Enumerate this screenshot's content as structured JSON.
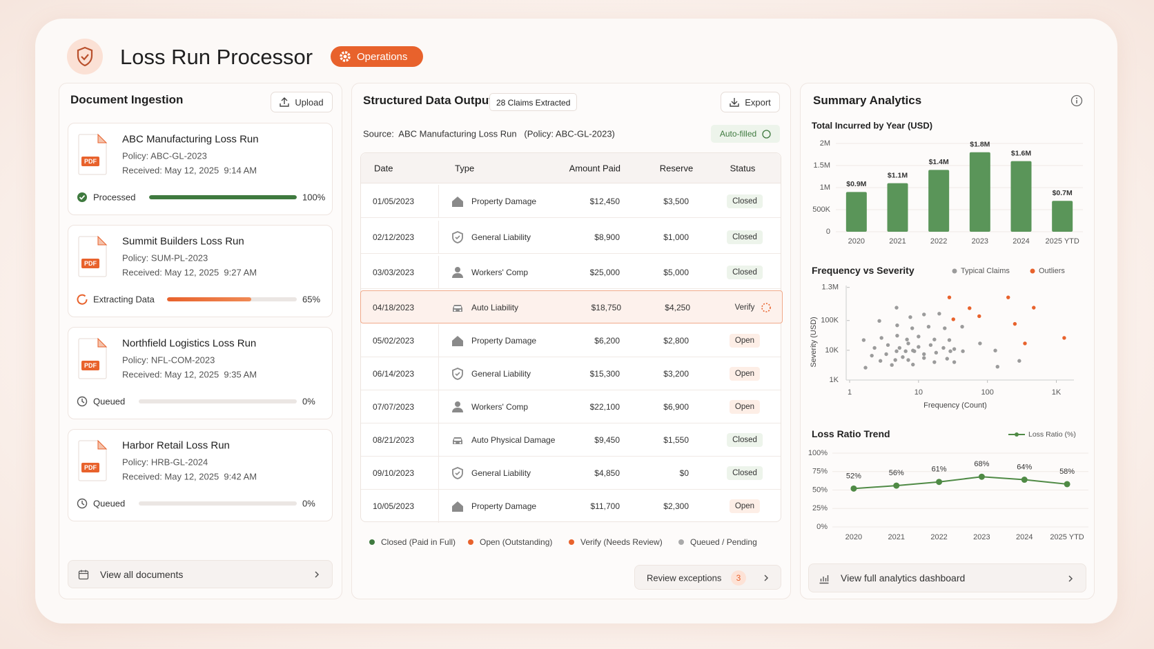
{
  "header": {
    "title": "Loss Run Processor",
    "badge": "Operations"
  },
  "ingestion": {
    "title": "Document Ingestion",
    "upload": "Upload",
    "documents": [
      {
        "file_type": "PDF",
        "name": "ABC Manufacturing Loss Run",
        "policy": "Policy: ABC-GL-2023",
        "received": "Received: May 12, 2025  9:14 AM",
        "status": "Processed",
        "progress": 100,
        "progress_label": "100%"
      },
      {
        "file_type": "PDF",
        "name": "Summit Builders Loss Run",
        "policy": "Policy: SUM-PL-2023",
        "received": "Received: May 12, 2025  9:27 AM",
        "status": "Extracting Data",
        "progress": 65,
        "progress_label": "65%"
      },
      {
        "file_type": "PDF",
        "name": "Northfield Logistics Loss Run",
        "policy": "Policy: NFL-COM-2023",
        "received": "Received: May 12, 2025  9:35 AM",
        "status": "Queued",
        "progress": 0,
        "progress_label": "0%"
      },
      {
        "file_type": "PDF",
        "name": "Harbor Retail Loss Run",
        "policy": "Policy: HRB-GL-2024",
        "received": "Received: May 12, 2025  9:42 AM",
        "status": "Queued",
        "progress": 0,
        "progress_label": "0%"
      }
    ],
    "footer": "View all documents"
  },
  "output": {
    "title": "Structured Data Output",
    "badge": "28 Claims Extracted",
    "export": "Export",
    "source": "Source:  ABC Manufacturing Loss Run   (Policy: ABC-GL-2023)",
    "autofill": "Auto-filled",
    "table": {
      "columns": [
        "Date",
        "Type",
        "Amount Paid",
        "Reserve",
        "Status"
      ],
      "rows": [
        [
          "01/05/2023",
          "Property Damage",
          "$12,450",
          "$3,500",
          "Closed"
        ],
        [
          "02/12/2023",
          "General Liability",
          "$8,900",
          "$1,000",
          "Closed"
        ],
        [
          "03/03/2023",
          "Workers' Comp",
          "$25,000",
          "$5,000",
          "Closed"
        ],
        [
          "04/18/2023",
          "Auto Liability",
          "$18,750",
          "$4,250",
          "Verify"
        ],
        [
          "05/02/2023",
          "Property Damage",
          "$6,200",
          "$2,800",
          "Open"
        ],
        [
          "06/14/2023",
          "General Liability",
          "$15,300",
          "$3,200",
          "Open"
        ],
        [
          "07/07/2023",
          "Workers' Comp",
          "$22,100",
          "$6,900",
          "Open"
        ],
        [
          "08/21/2023",
          "Auto Physical Damage",
          "$9,450",
          "$1,550",
          "Closed"
        ],
        [
          "09/10/2023",
          "General Liability",
          "$4,850",
          "$0",
          "Closed"
        ],
        [
          "10/05/2023",
          "Property Damage",
          "$11,700",
          "$2,300",
          "Open"
        ]
      ]
    },
    "legend": [
      "Closed (Paid in Full)",
      "Open (Outstanding)",
      "Verify (Needs Review)",
      "Queued / Pending"
    ],
    "review": "Review exceptions",
    "review_count": 3
  },
  "analytics": {
    "title": "Summary Analytics",
    "footer": "View full analytics dashboard",
    "charts": [
      {
        "type": "bar",
        "title": "Total Incurred by Year (USD)",
        "categories": [
          "2020",
          "2021",
          "2022",
          "2023",
          "2024",
          "2025 YTD"
        ],
        "values": [
          900000,
          1100000,
          1400000,
          1800000,
          1600000,
          700000
        ],
        "value_labels": [
          "$0.9M",
          "$1.1M",
          "$1.4M",
          "$1.8M",
          "$1.6M",
          "$0.7M"
        ],
        "color": "#5a9559",
        "ylim": [
          0,
          2000000
        ],
        "yticks": [
          0,
          {
            "value": 500000,
            "label": "500K"
          },
          {
            "value": 1000000,
            "label": "1M"
          },
          {
            "value": 1500000,
            "label": "1.5M"
          },
          {
            "value": 2000000,
            "label": "2M"
          }
        ],
        "grid": true
      },
      {
        "type": "scatter",
        "title": "Frequency vs Severity",
        "x_label": "Frequency (Count)",
        "y_label": "Severity (USD)",
        "log_x": true,
        "log_y": true,
        "xlim": [
          1,
          1800
        ],
        "ylim": [
          1000,
          1500000
        ],
        "xticks": [
          1,
          10,
          100,
          {
            "value": 1000,
            "label": "1K"
          }
        ],
        "yticks": [
          {
            "value": 1000,
            "label": "1K"
          },
          {
            "value": 10000,
            "label": "10K"
          },
          {
            "value": 100000,
            "label": "100K"
          },
          {
            "value": 1300000,
            "label": "1.3M"
          }
        ],
        "series": [
          {
            "name": "Typical Claims",
            "color": "#9b9b9b",
            "x": [
              4.8,
              2.7,
              7.6,
              12,
              20,
              4.9,
              8.1,
              14,
              24,
              43,
              1.6,
              2.9,
              4.9,
              6.8,
              10,
              17,
              28,
              78,
              2.3,
              3.6,
              5.3,
              7.1,
              10,
              15,
              23,
              33,
              2.1,
              3.4,
              4.8,
              6.5,
              8.7,
              12,
              18,
              29,
              44,
              130,
              2.8,
              4.6,
              7.1,
              12,
              26,
              1.7,
              4.1,
              8.3,
              17,
              33,
              140,
              290,
              8.3,
              5.9
            ],
            "values": [
              270000,
              97000,
              130000,
              160000,
              170000,
              69000,
              55000,
              62000,
              55000,
              62000,
              22000,
              26000,
              31000,
              23000,
              29000,
              23000,
              22000,
              17000,
              12000,
              15000,
              12000,
              17000,
              13000,
              15000,
              12000,
              11000,
              6600,
              7400,
              9300,
              9300,
              9300,
              7400,
              8300,
              9300,
              9300,
              9800,
              4400,
              4700,
              4700,
              5500,
              5200,
              2600,
              3200,
              3300,
              4000,
              4000,
              2800,
              4400,
              9800,
              5900
            ]
          },
          {
            "name": "Outliers",
            "color": "#e8622c",
            "x": [
              28,
              32,
              55,
              76,
              200,
              470,
              250,
              350,
              1300
            ],
            "values": [
              600000,
              110000,
              260000,
              140000,
              600000,
              270000,
              77000,
              17000,
              26000
            ]
          }
        ]
      },
      {
        "type": "line",
        "title": "Loss Ratio Trend",
        "categories": [
          "2020",
          "2021",
          "2022",
          "2023",
          "2024",
          "2025 YTD"
        ],
        "ylim": [
          0,
          100
        ],
        "yticks": [
          {
            "value": 0,
            "label": "0%"
          },
          {
            "value": 25,
            "label": "25%"
          },
          {
            "value": 50,
            "label": "50%"
          },
          {
            "value": 75,
            "label": "75%"
          },
          {
            "value": 100,
            "label": "100%"
          }
        ],
        "grid": true,
        "series": [
          {
            "name": "Loss Ratio (%)",
            "color": "#4f8a45",
            "values": [
              52,
              56,
              61,
              68,
              64,
              58
            ],
            "value_labels": [
              "52%",
              "56%",
              "61%",
              "68%",
              "64%",
              "58%"
            ]
          }
        ]
      }
    ]
  }
}
